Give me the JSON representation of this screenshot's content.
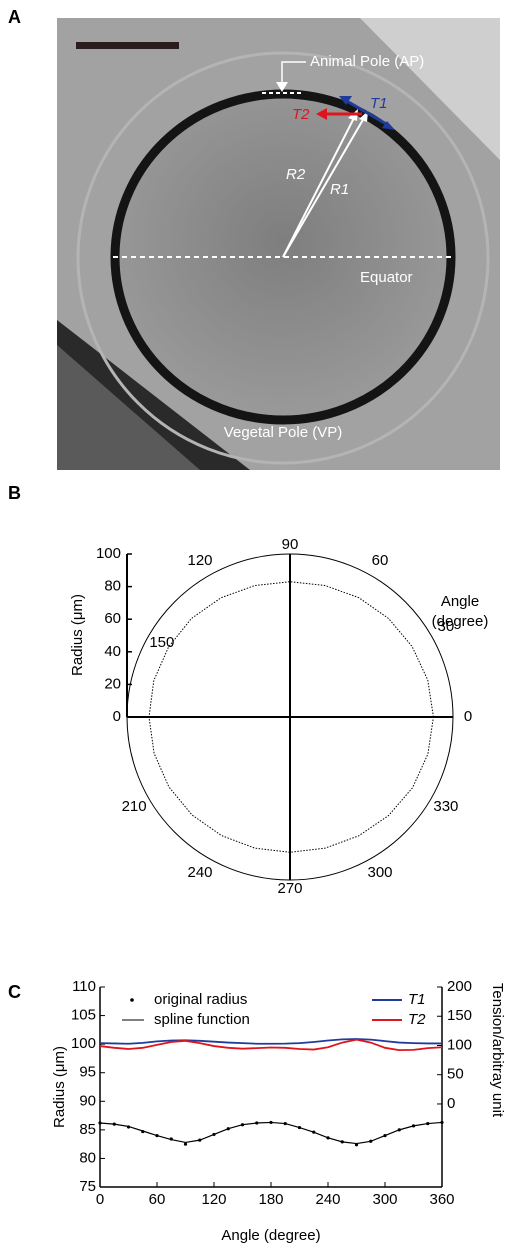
{
  "panel_a": {
    "label": "A",
    "annotations": {
      "animal_pole": "Animal Pole (AP)",
      "t2": "T2",
      "t1": "T1",
      "r2": "R2",
      "r1": "R1",
      "equator": "Equator",
      "vegetal_pole": "Vegetal Pole (VP)"
    }
  },
  "chart_data": [
    {
      "label": "B",
      "type": "polar",
      "radial_axis_title": "Radius (μm)",
      "angle_axis_title": [
        "Angle",
        "(degree)"
      ],
      "rlim": [
        0,
        100
      ],
      "rticks": [
        0,
        20,
        40,
        60,
        80,
        100
      ],
      "angle_ticks": [
        0,
        30,
        60,
        90,
        120,
        150,
        210,
        240,
        270,
        300,
        330
      ],
      "angles": [
        0,
        15,
        30,
        45,
        60,
        75,
        90,
        105,
        120,
        135,
        150,
        165,
        180,
        195,
        210,
        225,
        240,
        255,
        270,
        285,
        300,
        315,
        330,
        345
      ],
      "values": [
        88,
        87.5,
        86.5,
        85.5,
        84.5,
        83.5,
        83,
        83.5,
        84.5,
        85.5,
        86,
        86.5,
        86.5,
        86.3,
        85.8,
        85,
        84,
        83.3,
        83,
        83.3,
        84.2,
        85.5,
        86.8,
        87.6
      ],
      "color": "#000000"
    },
    {
      "label": "C",
      "type": "line",
      "x_label": "Angle (degree)",
      "y_label": "Radius (μm)",
      "y2_label": "Tension/arbitray unit",
      "xlim": [
        0,
        360
      ],
      "xticks": [
        0,
        60,
        120,
        180,
        240,
        300,
        360
      ],
      "ylim": [
        75,
        110
      ],
      "yticks": [
        75,
        80,
        85,
        90,
        95,
        100,
        105,
        110
      ],
      "y2lim": [
        -142,
        200
      ],
      "y2ticks": [
        0,
        50,
        100,
        150,
        200
      ],
      "x": [
        0,
        15,
        30,
        45,
        60,
        75,
        90,
        105,
        120,
        135,
        150,
        165,
        180,
        195,
        210,
        225,
        240,
        255,
        270,
        285,
        300,
        315,
        330,
        345,
        360
      ],
      "series": [
        {
          "name": "original radius",
          "style": "dots",
          "color": "#000000",
          "values": [
            86.2,
            86.0,
            85.5,
            84.7,
            84.0,
            83.4,
            82.5,
            83.2,
            84.2,
            85.2,
            85.9,
            86.2,
            86.3,
            86.1,
            85.4,
            84.6,
            83.6,
            82.9,
            82.4,
            83.0,
            84.0,
            85.0,
            85.7,
            86.1,
            86.3
          ]
        },
        {
          "name": "spline function",
          "style": "line",
          "color": "#000000",
          "values": [
            86.2,
            86.0,
            85.6,
            84.8,
            84.0,
            83.3,
            82.8,
            83.2,
            84.2,
            85.2,
            85.9,
            86.2,
            86.3,
            86.1,
            85.4,
            84.6,
            83.6,
            82.9,
            82.6,
            83.0,
            84.0,
            85.0,
            85.7,
            86.1,
            86.3
          ]
        },
        {
          "name": "T1",
          "axis": "y2",
          "color": "#1f3c9c",
          "values": [
            104,
            103.5,
            103,
            104.5,
            107,
            108.5,
            109,
            108,
            106.5,
            105,
            104,
            103,
            103,
            103.2,
            104,
            106,
            108.5,
            110.5,
            111,
            110,
            107.5,
            105,
            104,
            103.5,
            103.5
          ]
        },
        {
          "name": "T2",
          "axis": "y2",
          "color": "#e0141e",
          "values": [
            99,
            96,
            94,
            96,
            101,
            106,
            108,
            104,
            99,
            96,
            94.5,
            95.5,
            96.5,
            96,
            94,
            93,
            97,
            105,
            110,
            105,
            96,
            92,
            92.5,
            95.5,
            97
          ]
        }
      ]
    }
  ]
}
